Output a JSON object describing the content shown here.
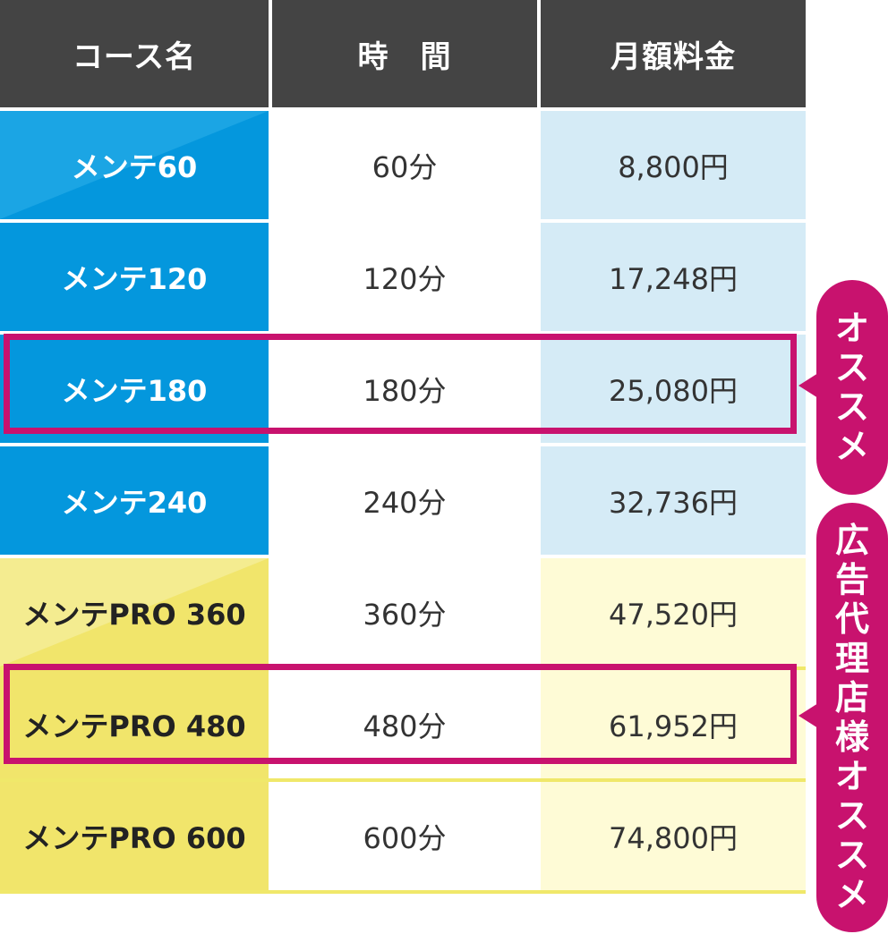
{
  "header": {
    "course": "コース名",
    "time": "時　間",
    "price": "月額料金"
  },
  "rows": [
    {
      "name": "メンテ60",
      "time": "60分",
      "price": "8,800円",
      "group": "blue"
    },
    {
      "name": "メンテ120",
      "time": "120分",
      "price": "17,248円",
      "group": "blue"
    },
    {
      "name": "メンテ180",
      "time": "180分",
      "price": "25,080円",
      "group": "blue"
    },
    {
      "name": "メンテ240",
      "time": "240分",
      "price": "32,736円",
      "group": "blue"
    },
    {
      "name": "メンテPRO 360",
      "time": "360分",
      "price": "47,520円",
      "group": "yellow"
    },
    {
      "name": "メンテPRO 480",
      "time": "480分",
      "price": "61,952円",
      "group": "yellow"
    },
    {
      "name": "メンテPRO 600",
      "time": "600分",
      "price": "74,800円",
      "group": "yellow"
    }
  ],
  "badges": {
    "recommend": "オススメ",
    "agency_recommend": "広告代理店様オススメ"
  },
  "colors": {
    "header_bg": "#444444",
    "blue": "#0497dd",
    "blue_light": "#d5ebf6",
    "yellow": "#f1e56b",
    "yellow_light": "#fefbd6",
    "accent": "#c8126e"
  }
}
